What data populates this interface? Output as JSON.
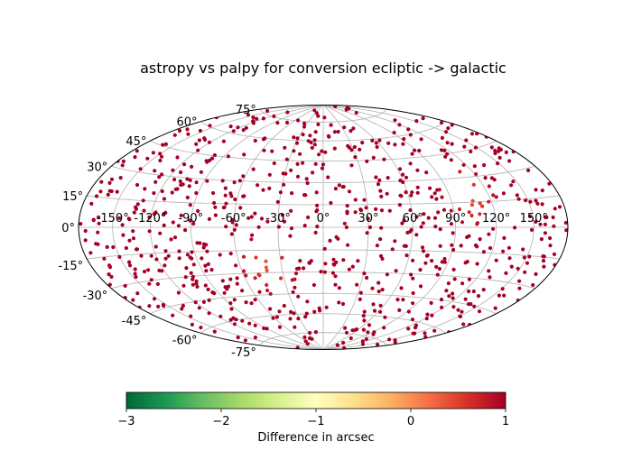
{
  "chart_data": {
    "type": "scatter",
    "projection": "aitoff-hammer (all-sky)",
    "title": "astropy vs palpy for conversion ecliptic -> galactic",
    "longitude_ticks": [
      "-150°",
      "-120°",
      "-90°",
      "-60°",
      "-30°",
      "0°",
      "30°",
      "60°",
      "90°",
      "120°",
      "150°"
    ],
    "latitude_ticks": [
      "75°",
      "60°",
      "45°",
      "30°",
      "15°",
      "0°",
      "-15°",
      "-30°",
      "-45°",
      "-60°",
      "-75°"
    ],
    "longitude_range": [
      -180,
      180
    ],
    "latitude_range": [
      -90,
      90
    ],
    "grid": true,
    "point_count": 800,
    "value_range": [
      -3,
      1
    ],
    "colormap": "RdYlGn_r",
    "colorbar": {
      "label": "Difference in arcsec",
      "ticks": [
        "−3",
        "−2",
        "−1",
        "0",
        "1"
      ],
      "vmin": -3,
      "vmax": 1,
      "orientation": "horizontal",
      "colors": [
        "#006837",
        "#1a9850",
        "#66bd63",
        "#a6d96a",
        "#d9ef8b",
        "#ffffbf",
        "#fee08b",
        "#fdae61",
        "#f46d43",
        "#d73027",
        "#a50026"
      ]
    },
    "highlight_regions": [
      {
        "lon": -40,
        "lat": -26,
        "value": 0.3
      },
      {
        "lon": 105,
        "lat": 20,
        "value": 0.3
      }
    ],
    "typical_value": 1.0
  }
}
